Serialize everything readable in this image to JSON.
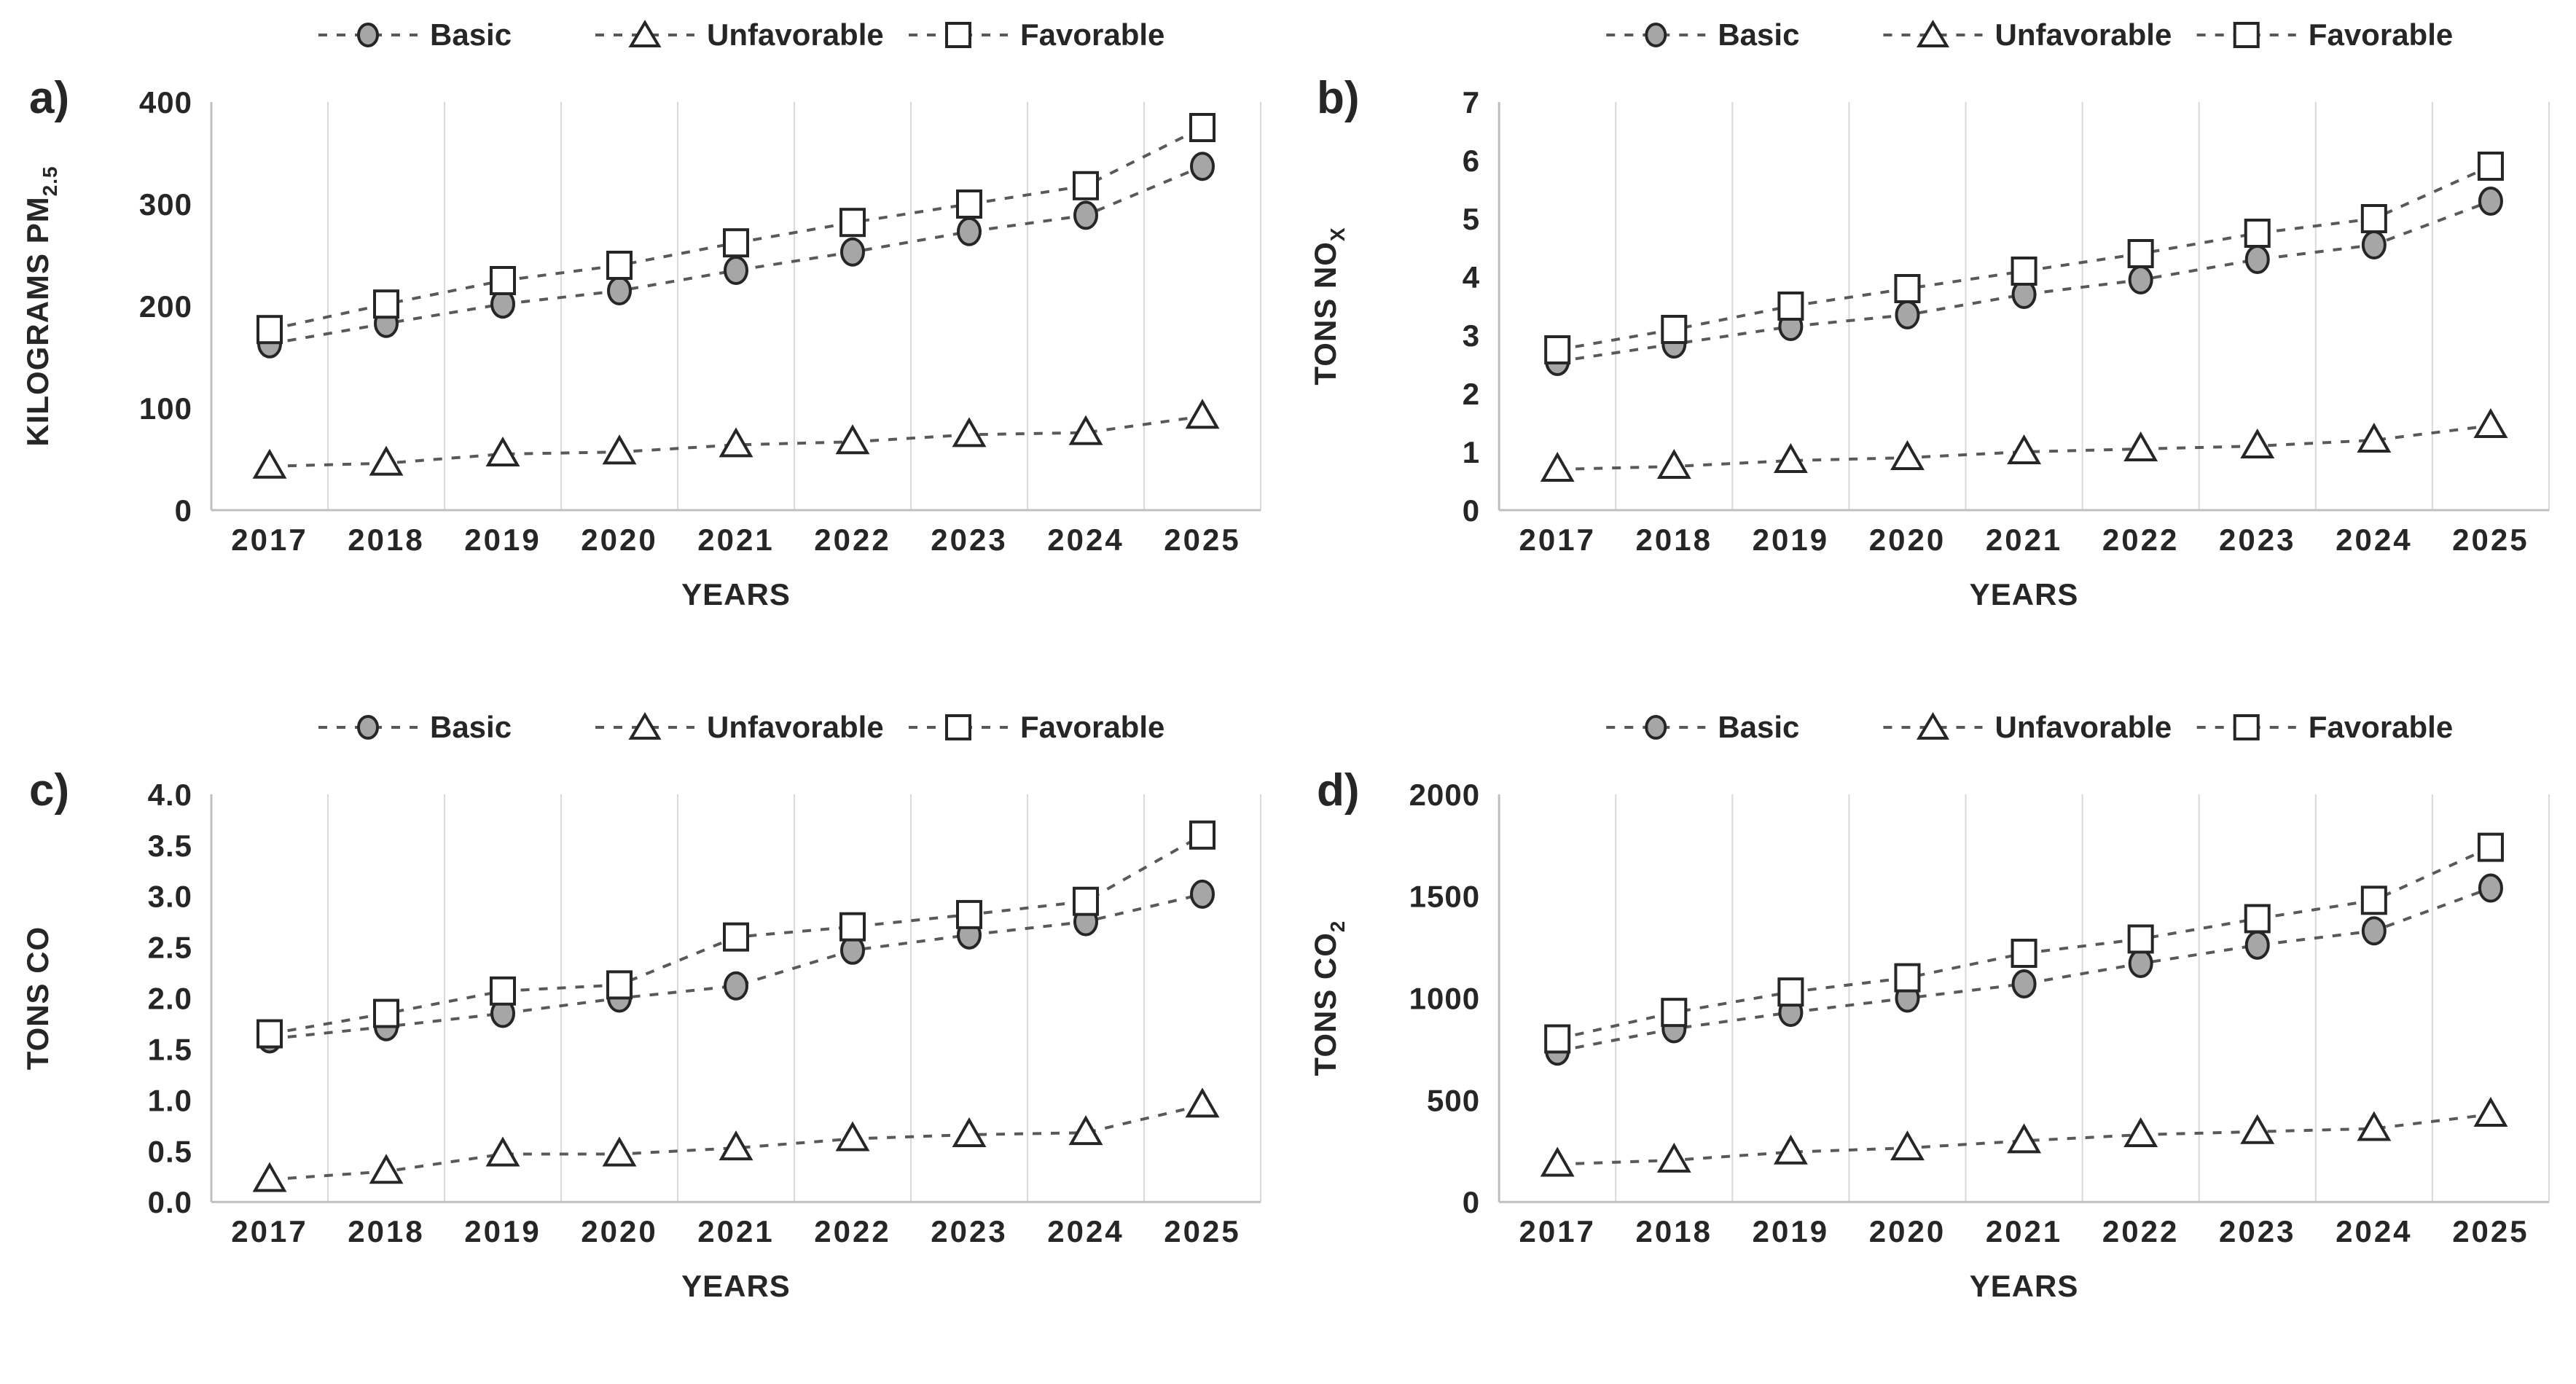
{
  "page": {
    "background": "#ffffff"
  },
  "colors": {
    "series_line": "#595959",
    "marker_stroke": "#262626",
    "basic_marker_fill": "#a6a6a6",
    "unfavorable_marker_fill": "#ffffff",
    "favorable_marker_fill": "#ffffff",
    "gridline": "#d9d9d9",
    "axis_line": "#bfbfbf",
    "text": "#262626"
  },
  "chart_data": [
    {
      "type": "line",
      "panel_label": "a)",
      "xlabel": "YEARS",
      "ylabel_main": "KILOGRAMS PM",
      "ylabel_sub": "2.5",
      "x": [
        "2017",
        "2018",
        "2019",
        "2020",
        "2021",
        "2022",
        "2023",
        "2024",
        "2025"
      ],
      "ymax": 400,
      "ylim": [
        0,
        400
      ],
      "yticks": [
        "0",
        "100",
        "200",
        "300",
        "400"
      ],
      "grid": "vertical-only",
      "legend_position": "top",
      "series": [
        {
          "name": "Basic",
          "marker": "circle",
          "marker_fill": "#a6a6a6",
          "values": [
            163,
            183,
            202,
            215,
            235,
            253,
            273,
            289,
            337
          ]
        },
        {
          "name": "Unfavorable",
          "marker": "triangle",
          "marker_fill": "#ffffff",
          "values": [
            43,
            46,
            55,
            57,
            64,
            67,
            74,
            76,
            92
          ]
        },
        {
          "name": "Favorable",
          "marker": "square",
          "marker_fill": "#ffffff",
          "values": [
            177,
            202,
            225,
            240,
            262,
            282,
            300,
            318,
            375
          ]
        }
      ]
    },
    {
      "type": "line",
      "panel_label": "b)",
      "xlabel": "YEARS",
      "ylabel_main": "TONS NO",
      "ylabel_sub": "X",
      "x": [
        "2017",
        "2018",
        "2019",
        "2020",
        "2021",
        "2022",
        "2023",
        "2024",
        "2025"
      ],
      "ymax": 7,
      "ylim": [
        0,
        7
      ],
      "yticks": [
        "0",
        "1",
        "2",
        "3",
        "4",
        "5",
        "6",
        "7"
      ],
      "grid": "vertical-only",
      "legend_position": "top",
      "series": [
        {
          "name": "Basic",
          "marker": "circle",
          "marker_fill": "#a6a6a6",
          "values": [
            2.55,
            2.85,
            3.15,
            3.35,
            3.7,
            3.95,
            4.3,
            4.55,
            5.3
          ]
        },
        {
          "name": "Unfavorable",
          "marker": "triangle",
          "marker_fill": "#ffffff",
          "values": [
            0.7,
            0.75,
            0.85,
            0.9,
            1.0,
            1.05,
            1.1,
            1.2,
            1.45
          ]
        },
        {
          "name": "Favorable",
          "marker": "square",
          "marker_fill": "#ffffff",
          "values": [
            2.75,
            3.1,
            3.5,
            3.8,
            4.1,
            4.4,
            4.75,
            5.0,
            5.9
          ]
        }
      ]
    },
    {
      "type": "line",
      "panel_label": "c)",
      "xlabel": "YEARS",
      "ylabel_main": "TONS CO",
      "ylabel_sub": "",
      "x": [
        "2017",
        "2018",
        "2019",
        "2020",
        "2021",
        "2022",
        "2023",
        "2024",
        "2025"
      ],
      "ymax": 4,
      "ylim": [
        0,
        4
      ],
      "yticks": [
        "0.0",
        "0.5",
        "1.0",
        "1.5",
        "2.0",
        "2.5",
        "3.0",
        "3.5",
        "4.0"
      ],
      "grid": "vertical-only",
      "legend_position": "top",
      "series": [
        {
          "name": "Basic",
          "marker": "circle",
          "marker_fill": "#a6a6a6",
          "values": [
            1.6,
            1.72,
            1.85,
            2.0,
            2.12,
            2.47,
            2.62,
            2.75,
            3.02
          ]
        },
        {
          "name": "Unfavorable",
          "marker": "triangle",
          "marker_fill": "#ffffff",
          "values": [
            0.22,
            0.3,
            0.47,
            0.47,
            0.53,
            0.62,
            0.66,
            0.68,
            0.95
          ]
        },
        {
          "name": "Favorable",
          "marker": "square",
          "marker_fill": "#ffffff",
          "values": [
            1.65,
            1.85,
            2.07,
            2.13,
            2.6,
            2.7,
            2.82,
            2.95,
            3.6
          ]
        }
      ]
    },
    {
      "type": "line",
      "panel_label": "d)",
      "xlabel": "YEARS",
      "ylabel_main": "TONS CO",
      "ylabel_sub": "2",
      "x": [
        "2017",
        "2018",
        "2019",
        "2020",
        "2021",
        "2022",
        "2023",
        "2024",
        "2025"
      ],
      "ymax": 2000,
      "ylim": [
        0,
        2000
      ],
      "yticks": [
        "0",
        "500",
        "1000",
        "1500",
        "2000"
      ],
      "grid": "vertical-only",
      "legend_position": "top",
      "series": [
        {
          "name": "Basic",
          "marker": "circle",
          "marker_fill": "#a6a6a6",
          "values": [
            740,
            850,
            930,
            1000,
            1070,
            1170,
            1260,
            1330,
            1540
          ]
        },
        {
          "name": "Unfavorable",
          "marker": "triangle",
          "marker_fill": "#ffffff",
          "values": [
            185,
            205,
            245,
            265,
            300,
            330,
            345,
            360,
            430
          ]
        },
        {
          "name": "Favorable",
          "marker": "square",
          "marker_fill": "#ffffff",
          "values": [
            800,
            930,
            1030,
            1100,
            1220,
            1290,
            1390,
            1480,
            1740
          ]
        }
      ]
    }
  ]
}
